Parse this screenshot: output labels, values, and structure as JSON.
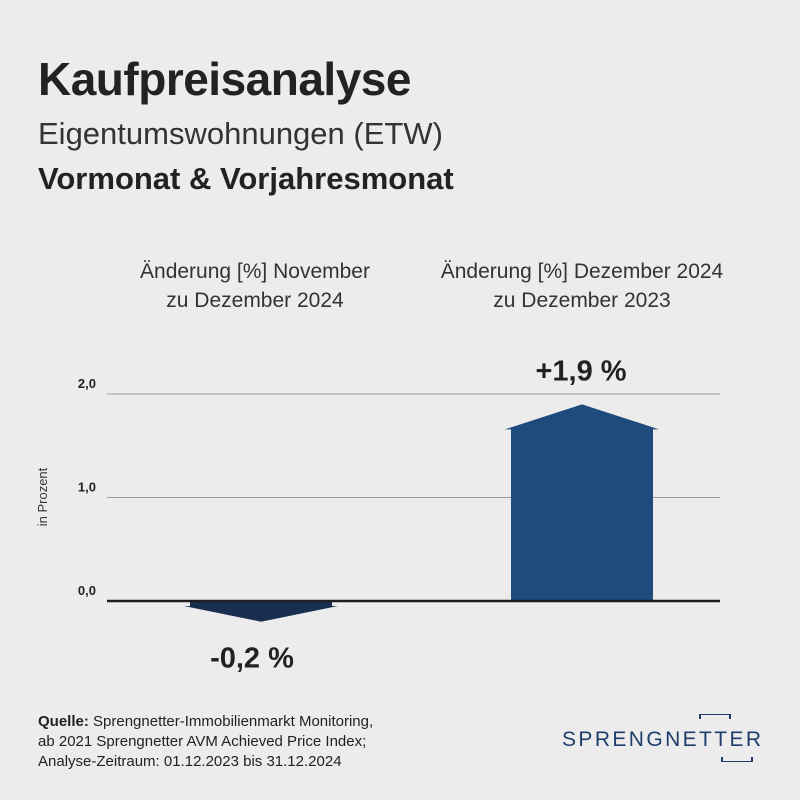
{
  "header": {
    "title": "Kaufpreisanalyse",
    "subtitle": "Eigentumswohnungen (ETW)",
    "subtitle2": "Vormonat & Vorjahresmonat"
  },
  "columns": [
    {
      "line1": "Änderung [%] November",
      "line2": "zu Dezember 2024"
    },
    {
      "line1": "Änderung [%] Dezember 2024",
      "line2": "zu Dezember 2023"
    }
  ],
  "chart_data": {
    "type": "bar",
    "categories": [
      "Änderung [%] November zu Dezember 2024",
      "Änderung [%] Dezember 2024 zu Dezember 2023"
    ],
    "values": [
      -0.2,
      1.9
    ],
    "value_labels": [
      "-0,2 %",
      "+1,9 %"
    ],
    "ylabel": "in Prozent",
    "yticks": [
      "0,0",
      "1,0",
      "2,0"
    ],
    "ytick_values": [
      0,
      1,
      2
    ],
    "ylim": [
      -0.2,
      2.0
    ],
    "grid": true,
    "colors": {
      "negative": "#1a2f50",
      "positive": "#1f4a7c",
      "axis": "#1f1f1f",
      "grid": "#9a9a9a"
    }
  },
  "source": {
    "label": "Quelle:",
    "line1": "Sprengnetter-Immobilienmarkt Monitoring,",
    "line2": "ab 2021 Sprengnetter AVM Achieved Price Index;",
    "line3": "Analyse-Zeitraum: 01.12.2023 bis 31.12.2024"
  },
  "logo": {
    "text": "SPRENGNETTER",
    "color": "#1f3d6b"
  }
}
